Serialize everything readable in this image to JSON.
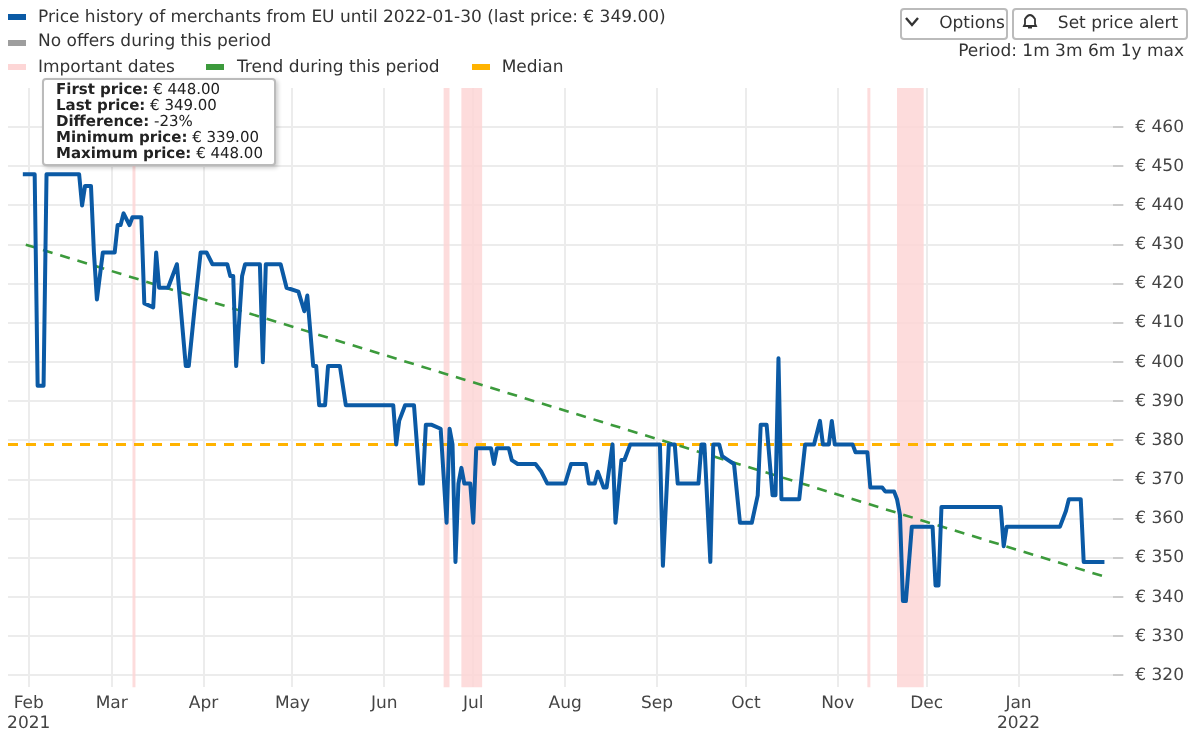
{
  "chart_data": {
    "type": "line",
    "legend": "top left",
    "grid": true,
    "marker": "none",
    "annotations": [
      "Options",
      "Set price alert",
      "Period: 1m 3m 6m 1y max",
      "First price: € 448.00",
      "Last price: € 349.00",
      "Difference: -23%",
      "Minimum price: € 339.00",
      "Maximum price: € 448.00"
    ],
    "xlim": [
      "2021-01-25",
      "2022-02-02"
    ],
    "xticks": [
      {
        "value": "2021-02-01",
        "label": "Feb 2021"
      },
      {
        "value": "2021-03-01",
        "label": "Mar"
      },
      {
        "value": "2021-04-01",
        "label": "Apr"
      },
      {
        "value": "2021-05-01",
        "label": "May"
      },
      {
        "value": "2021-06-01",
        "label": "Jun"
      },
      {
        "value": "2021-07-01",
        "label": "Jul"
      },
      {
        "value": "2021-08-01",
        "label": "Aug"
      },
      {
        "value": "2021-09-01",
        "label": "Sep"
      },
      {
        "value": "2021-10-01",
        "label": "Oct"
      },
      {
        "value": "2021-11-01",
        "label": "Nov"
      },
      {
        "value": "2021-12-01",
        "label": "Dec"
      },
      {
        "value": "2022-01-01",
        "label": "Jan 2022"
      }
    ],
    "ylim": [
      317,
      470
    ],
    "yticks": [
      {
        "value": 320,
        "label": "€ 320"
      },
      {
        "value": 330,
        "label": "€ 330"
      },
      {
        "value": 340,
        "label": "€ 340"
      },
      {
        "value": 350,
        "label": "€ 350"
      },
      {
        "value": 360,
        "label": "€ 360"
      },
      {
        "value": 370,
        "label": "€ 370"
      },
      {
        "value": 380,
        "label": "€ 380"
      },
      {
        "value": 390,
        "label": "€ 390"
      },
      {
        "value": 400,
        "label": "€ 400"
      },
      {
        "value": 410,
        "label": "€ 410"
      },
      {
        "value": 420,
        "label": "€ 420"
      },
      {
        "value": 430,
        "label": "€ 430"
      },
      {
        "value": 440,
        "label": "€ 440"
      },
      {
        "value": 450,
        "label": "€ 450"
      },
      {
        "value": 460,
        "label": "€ 460"
      }
    ],
    "series": [
      {
        "name": "Price history of merchants from EU until 2022-01-30 (last price: € 349.00)",
        "color": "#0b5aa5",
        "line_style": "solid",
        "x": [
          "2021-01-30",
          "2021-02-03",
          "2021-02-04",
          "2021-02-06",
          "2021-02-07",
          "2021-02-18",
          "2021-02-19",
          "2021-02-20",
          "2021-02-22",
          "2021-02-23",
          "2021-02-24",
          "2021-02-26",
          "2021-03-02",
          "2021-03-03",
          "2021-03-04",
          "2021-03-05",
          "2021-03-07",
          "2021-03-08",
          "2021-03-11",
          "2021-03-12",
          "2021-03-15",
          "2021-03-16",
          "2021-03-17",
          "2021-03-20",
          "2021-03-23",
          "2021-03-26",
          "2021-03-27",
          "2021-03-29",
          "2021-03-31",
          "2021-04-02",
          "2021-04-04",
          "2021-04-09",
          "2021-04-10",
          "2021-04-11",
          "2021-04-12",
          "2021-04-14",
          "2021-04-15",
          "2021-04-20",
          "2021-04-21",
          "2021-04-22",
          "2021-04-27",
          "2021-04-29",
          "2021-05-03",
          "2021-05-05",
          "2021-05-06",
          "2021-05-08",
          "2021-05-09",
          "2021-05-10",
          "2021-05-12",
          "2021-05-13",
          "2021-05-17",
          "2021-05-19",
          "2021-06-04",
          "2021-06-05",
          "2021-06-06",
          "2021-06-08",
          "2021-06-11",
          "2021-06-13",
          "2021-06-14",
          "2021-06-15",
          "2021-06-17",
          "2021-06-20",
          "2021-06-22",
          "2021-06-23",
          "2021-06-24",
          "2021-06-25",
          "2021-06-26",
          "2021-06-27",
          "2021-06-28",
          "2021-06-30",
          "2021-07-01",
          "2021-07-02",
          "2021-07-07",
          "2021-07-08",
          "2021-07-09",
          "2021-07-13",
          "2021-07-14",
          "2021-07-16",
          "2021-07-22",
          "2021-07-24",
          "2021-07-26",
          "2021-08-01",
          "2021-08-03",
          "2021-08-08",
          "2021-08-09",
          "2021-08-11",
          "2021-08-12",
          "2021-08-14",
          "2021-08-15",
          "2021-08-17",
          "2021-08-18",
          "2021-08-20",
          "2021-08-21",
          "2021-08-23",
          "2021-09-02",
          "2021-09-03",
          "2021-09-05",
          "2021-09-07",
          "2021-09-08",
          "2021-09-15",
          "2021-09-16",
          "2021-09-17",
          "2021-09-19",
          "2021-09-20",
          "2021-09-22",
          "2021-09-23",
          "2021-09-25",
          "2021-09-27",
          "2021-09-29",
          "2021-10-03",
          "2021-10-05",
          "2021-10-06",
          "2021-10-08",
          "2021-10-10",
          "2021-10-11",
          "2021-10-12",
          "2021-10-13",
          "2021-10-19",
          "2021-10-21",
          "2021-10-24",
          "2021-10-26",
          "2021-10-27",
          "2021-10-29",
          "2021-10-30",
          "2021-10-31",
          "2021-11-06",
          "2021-11-07",
          "2021-11-11",
          "2021-11-12",
          "2021-11-16",
          "2021-11-17",
          "2021-11-20",
          "2021-11-21",
          "2021-11-22",
          "2021-11-23",
          "2021-11-24",
          "2021-11-26",
          "2021-12-03",
          "2021-12-04",
          "2021-12-05",
          "2021-12-06",
          "2021-12-26",
          "2021-12-27",
          "2021-12-28",
          "2022-01-15",
          "2022-01-17",
          "2022-01-18",
          "2022-01-22",
          "2022-01-23",
          "2022-01-30"
        ],
        "values": [
          448,
          448,
          394,
          394,
          448,
          448,
          440,
          445,
          445,
          428,
          416,
          428,
          428,
          435,
          435,
          438,
          435,
          437,
          437,
          415,
          414,
          428,
          419,
          419,
          425,
          399,
          399,
          414,
          428,
          428,
          425,
          425,
          422,
          422,
          399,
          422,
          425,
          425,
          400,
          425,
          425,
          419,
          418,
          413,
          417,
          399,
          399,
          389,
          389,
          399,
          399,
          389,
          389,
          379,
          385,
          389,
          389,
          369,
          369,
          384,
          384,
          383,
          359,
          383,
          379,
          349,
          369,
          373,
          369,
          369,
          359,
          378,
          378,
          374,
          378,
          378,
          375,
          374,
          374,
          372,
          369,
          369,
          374,
          374,
          369,
          369,
          372,
          368,
          368,
          379,
          359,
          375,
          375,
          379,
          379,
          348,
          379,
          379,
          369,
          369,
          379,
          379,
          349,
          379,
          379,
          376,
          375,
          374,
          359,
          359,
          366,
          384,
          384,
          366,
          366,
          401,
          365,
          365,
          379,
          379,
          385,
          379,
          379,
          385,
          379,
          379,
          377,
          377,
          368,
          368,
          367,
          367,
          365,
          361,
          339,
          339,
          358,
          358,
          343,
          343,
          363,
          363,
          353,
          358,
          358,
          362,
          365,
          365,
          349,
          349
        ]
      },
      {
        "name": "No offers during this period",
        "color": "#9e9e9e"
      },
      {
        "name": "Trend during this period",
        "color": "#3c9a3c",
        "line_style": "dashed",
        "x": [
          "2021-01-31",
          "2022-01-31"
        ],
        "values": [
          430,
          345
        ]
      }
    ],
    "bands": [
      {
        "axis": "x",
        "from": "2021-03-08",
        "to": "2021-03-09",
        "label": "Important dates",
        "color": "#fdd6d6"
      },
      {
        "axis": "x",
        "from": "2021-06-21",
        "to": "2021-06-23",
        "label": null,
        "color": "#fdd6d6"
      },
      {
        "axis": "x",
        "from": "2021-06-27",
        "to": "2021-07-04",
        "label": null,
        "color": "#fdd6d6"
      },
      {
        "axis": "x",
        "from": "2021-11-11",
        "to": "2021-11-12",
        "label": null,
        "color": "#fdd6d6"
      },
      {
        "axis": "x",
        "from": "2021-11-21",
        "to": "2021-11-30",
        "label": null,
        "color": "#fdd6d6"
      }
    ],
    "ref_lines": [
      {
        "axis": "y",
        "value": 379,
        "label": "Median",
        "color": "#ffb300",
        "line_style": "dashed"
      }
    ]
  }
}
